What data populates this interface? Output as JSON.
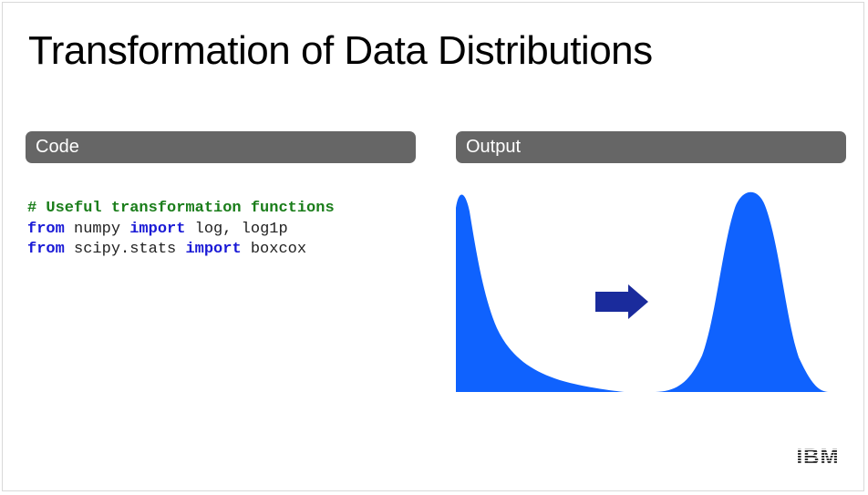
{
  "slide": {
    "title": "Transformation of Data Distributions",
    "code_header": "Code",
    "output_header": "Output"
  },
  "code": {
    "line1": "# Useful transformation functions",
    "line2": {
      "kw1": "from",
      "t1": " numpy ",
      "kw2": "import",
      "t2": " log, log1p"
    },
    "line3": {
      "kw1": "from",
      "t1": " scipy.stats ",
      "kw2": "import",
      "t2": " boxcox"
    }
  },
  "output": {
    "left_shape": "right-skewed-distribution",
    "right_shape": "normal-distribution",
    "arrow": "right-arrow-icon",
    "fill_color": "#0f62fe",
    "arrow_color": "#1a2b9c"
  },
  "logo": {
    "text": "IBM"
  },
  "colors": {
    "header_bar": "#666666",
    "comment": "#1a7d1a",
    "keyword": "#1a1ad6"
  }
}
